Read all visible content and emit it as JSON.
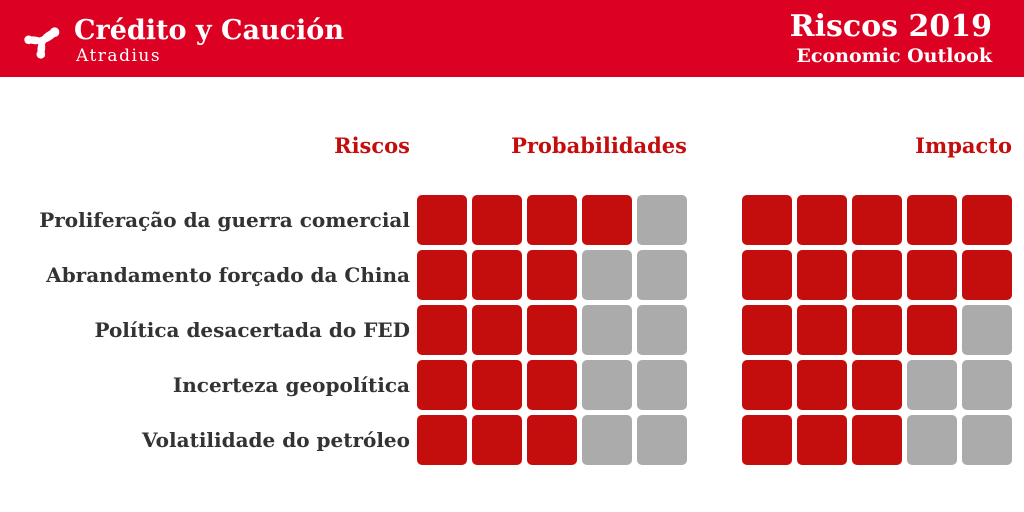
{
  "colors": {
    "header_red": "#DC0023",
    "square_red": "#C40D0D",
    "square_gray": "#ABABAB",
    "label_dark": "#333333"
  },
  "header": {
    "brand_name": "Crédito y Caución",
    "brand_sub": "Atradius",
    "title": "Riscos 2019",
    "subtitle": "Economic Outlook"
  },
  "columns": {
    "riscos": "Riscos",
    "probabilidades": "Probabilidades",
    "impacto": "Impacto"
  },
  "chart_data": {
    "type": "heatmap",
    "title": "Riscos 2019",
    "subtitle": "Economic Outlook",
    "categories": [
      "Proliferação da guerra comercial",
      "Abrandamento forçado da China",
      "Política desacertada do FED",
      "Incerteza geopolítica",
      "Volatilidade do petróleo"
    ],
    "series": [
      {
        "name": "Probabilidades",
        "values": [
          4,
          3,
          3,
          3,
          3
        ]
      },
      {
        "name": "Impacto",
        "values": [
          5,
          5,
          4,
          3,
          3
        ]
      }
    ],
    "scale_max": 5,
    "legend_position": "none",
    "grid": false
  }
}
